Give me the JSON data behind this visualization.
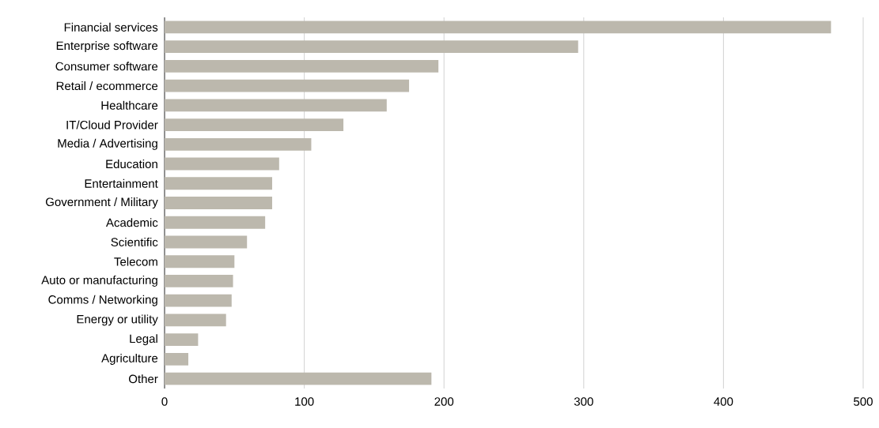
{
  "chart_data": {
    "type": "bar",
    "orientation": "horizontal",
    "categories": [
      "Financial services",
      "Enterprise software",
      "Consumer software",
      "Retail / ecommerce",
      "Healthcare",
      "IT/Cloud Provider",
      "Media / Advertising",
      "Education",
      "Entertainment",
      "Government / Military",
      "Academic",
      "Scientific",
      "Telecom",
      "Auto or manufacturing",
      "Comms / Networking",
      "Energy or utility",
      "Legal",
      "Agriculture",
      "Other"
    ],
    "values": [
      477,
      296,
      196,
      175,
      159,
      128,
      105,
      82,
      77,
      77,
      72,
      59,
      50,
      49,
      48,
      44,
      24,
      17,
      191
    ],
    "color": "#bcb8ad",
    "xlim": [
      0,
      500
    ],
    "xticks": [
      0,
      100,
      200,
      300,
      400,
      500
    ],
    "grid": "x"
  }
}
